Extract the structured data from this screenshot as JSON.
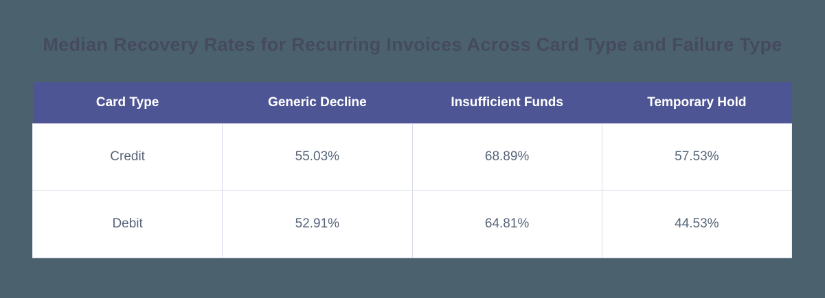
{
  "chart_data": {
    "type": "table",
    "title": "Median Recovery Rates for Recurring Invoices Across Card Type and Failure Type",
    "columns": [
      "Card Type",
      "Generic Decline",
      "Insufficient Funds",
      "Temporary Hold"
    ],
    "rows": [
      [
        "Credit",
        "55.03%",
        "68.89%",
        "57.53%"
      ],
      [
        "Debit",
        "52.91%",
        "64.81%",
        "44.53%"
      ]
    ],
    "categories": [
      "Credit",
      "Debit"
    ],
    "series": [
      {
        "name": "Generic Decline",
        "values": [
          55.03,
          52.91
        ]
      },
      {
        "name": "Insufficient Funds",
        "values": [
          68.89,
          64.81
        ]
      },
      {
        "name": "Temporary Hold",
        "values": [
          57.53,
          44.53
        ]
      }
    ],
    "value_unit": "%",
    "layout_hints": {
      "title_position": "top-center",
      "grid": "light horizontal and vertical dividers in body only",
      "legend": "none"
    }
  },
  "theme": {
    "page_background": "#4b626e",
    "header_background": "#4d5594",
    "header_text_color": "#ffffff",
    "title_text_color": "#454a5f",
    "cell_text_color": "#566477",
    "cell_background": "#ffffff",
    "grid_border_color": "#d9dcea"
  }
}
